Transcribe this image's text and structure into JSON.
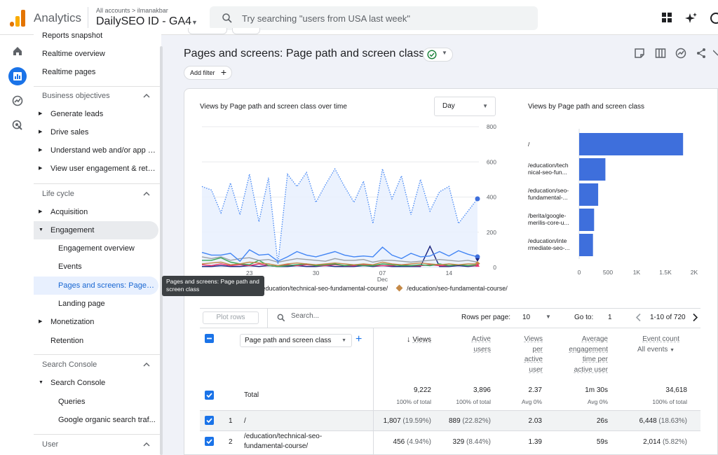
{
  "topbar": {
    "brand": "Analytics",
    "breadcrumb": "All accounts > ilmanakbar",
    "property": "DailySEO ID - GA4",
    "search_placeholder": "Try searching \"users from USA last week\"",
    "accent": "#1a73e8"
  },
  "nav": {
    "items_top": [
      "Reports snapshot",
      "Realtime overview",
      "Realtime pages"
    ],
    "sections": [
      {
        "label": "Business objectives",
        "items": [
          "Generate leads",
          "Drive sales",
          "Understand web and/or app t...",
          "View user engagement & rete..."
        ]
      },
      {
        "label": "Life cycle",
        "items": [
          "Acquisition",
          "Engagement"
        ]
      },
      {
        "label": "Search Console",
        "items": [
          "Search Console"
        ]
      },
      {
        "label": "User"
      }
    ],
    "engagement_children": [
      "Engagement overview",
      "Events",
      "Pages and screens: Page p...",
      "Landing page"
    ],
    "lifecycle_rest": [
      "Monetization",
      "Retention"
    ],
    "search_console_children": [
      "Queries",
      "Google organic search traf..."
    ]
  },
  "tooltip": "Pages and screens: Page path and screen class",
  "page": {
    "title": "Pages and screens: Page path and screen class",
    "add_filter": "Add filter"
  },
  "line_chart": {
    "title": "Views by Page path and screen class over time",
    "granularity": "Day",
    "y_ticks": [
      "800",
      "600",
      "400",
      "200",
      "0"
    ],
    "x_ticks": [
      "23",
      "30",
      "07",
      "14"
    ],
    "x_tick_sub": [
      "Nov",
      "",
      "Dec",
      ""
    ],
    "legend": [
      {
        "label": "/education/technical-seo-fundamental-course/",
        "color": "#1a73e8"
      },
      {
        "label": "/education/seo-fundamental-course/",
        "color": "#c58a48"
      }
    ]
  },
  "chart_data": [
    {
      "type": "line",
      "title": "Views by Page path and screen class over time",
      "x": [
        "Nov 18",
        "Nov 19",
        "Nov 20",
        "Nov 21",
        "Nov 22",
        "Nov 23",
        "Nov 24",
        "Nov 25",
        "Nov 26",
        "Nov 27",
        "Nov 28",
        "Nov 29",
        "Nov 30",
        "Dec 1",
        "Dec 2",
        "Dec 3",
        "Dec 4",
        "Dec 5",
        "Dec 6",
        "Dec 7",
        "Dec 8",
        "Dec 9",
        "Dec 10",
        "Dec 11",
        "Dec 12",
        "Dec 13",
        "Dec 14",
        "Dec 15",
        "Dec 16",
        "Dec 17"
      ],
      "ylim": [
        0,
        800
      ],
      "grid": true,
      "series": [
        {
          "name": "",
          "style": "dotted",
          "color": "#4285f4",
          "values": [
            460,
            440,
            310,
            480,
            300,
            530,
            260,
            510,
            20,
            530,
            460,
            540,
            370,
            470,
            560,
            460,
            370,
            490,
            250,
            560,
            390,
            520,
            300,
            500,
            320,
            430,
            460,
            250,
            320,
            390
          ]
        },
        {
          "name": "",
          "color": "#4285f4",
          "values": [
            85,
            70,
            70,
            80,
            35,
            100,
            70,
            75,
            35,
            60,
            90,
            70,
            60,
            75,
            90,
            70,
            60,
            65,
            60,
            115,
            70,
            50,
            80,
            60,
            65,
            90,
            65,
            95,
            75,
            60
          ]
        },
        {
          "name": "",
          "color": "#9aa0a6",
          "values": [
            60,
            50,
            60,
            40,
            50,
            55,
            40,
            45,
            30,
            40,
            50,
            45,
            40,
            35,
            50,
            40,
            40,
            45,
            30,
            40,
            40,
            35,
            30,
            35,
            40,
            45,
            40,
            35,
            40,
            30
          ]
        },
        {
          "name": "",
          "color": "#c58a48",
          "values": [
            20,
            25,
            30,
            15,
            20,
            30,
            25,
            20,
            10,
            20,
            25,
            20,
            15,
            20,
            25,
            20,
            15,
            20,
            15,
            30,
            20,
            15,
            20,
            25,
            20,
            15,
            20,
            15,
            20,
            20
          ]
        },
        {
          "name": "",
          "color": "#34a853",
          "values": [
            40,
            40,
            55,
            30,
            20,
            15,
            40,
            10,
            5,
            10,
            15,
            20,
            10,
            15,
            20,
            10,
            15,
            10,
            10,
            20,
            15,
            10,
            10,
            15,
            10,
            20,
            10,
            15,
            10,
            15
          ]
        },
        {
          "name": "",
          "color": "#e8336d",
          "values": [
            15,
            10,
            20,
            10,
            15,
            10,
            20,
            10,
            5,
            15,
            10,
            15,
            10,
            10,
            15,
            10,
            10,
            15,
            10,
            10,
            10,
            15,
            10,
            10,
            15,
            10,
            10,
            15,
            10,
            10
          ]
        },
        {
          "name": "",
          "color": "#1a237e",
          "values": [
            5,
            5,
            10,
            5,
            5,
            10,
            5,
            10,
            5,
            5,
            10,
            5,
            5,
            10,
            5,
            5,
            5,
            10,
            5,
            10,
            5,
            5,
            5,
            5,
            120,
            5,
            5,
            10,
            5,
            10
          ]
        }
      ]
    },
    {
      "type": "bar",
      "title": "Views by Page path and screen class",
      "orientation": "horizontal",
      "categories": [
        "/",
        "/education/technical-seo-fundamental-course/",
        "/education/seo-fundamental-course/",
        "/berita/google-merilis-core-update/",
        "/education/intermediate-seo-course/"
      ],
      "category_labels": [
        [
          "/"
        ],
        [
          "/education/tech",
          "nical-seo-fun..."
        ],
        [
          "/education/seo-",
          "fundamental-..."
        ],
        [
          "/berita/google-",
          "merilis-core-u..."
        ],
        [
          "/education/inte",
          "rmediate-seo-..."
        ]
      ],
      "values": [
        1807,
        456,
        330,
        260,
        240
      ],
      "x_ticks": [
        "0",
        "500",
        "1K",
        "1.5K",
        "2K"
      ],
      "xlim": [
        0,
        2000
      ],
      "color": "#3e6fdc"
    }
  ],
  "bar_chart": {
    "title": "Views by Page path and screen class"
  },
  "table": {
    "plot_rows": "Plot rows",
    "search_placeholder": "Search...",
    "rows_per_page_label": "Rows per page:",
    "rows_per_page": "10",
    "goto_label": "Go to:",
    "goto_value": "1",
    "pagination": "1-10 of 720",
    "dimension_label": "Page path and screen class",
    "columns": [
      {
        "lines": [
          "Views"
        ],
        "sorted": true
      },
      {
        "lines": [
          "Active",
          "users"
        ]
      },
      {
        "lines": [
          "Views",
          "per",
          "active",
          "user"
        ]
      },
      {
        "lines": [
          "Average",
          "engagement",
          "time per",
          "active user"
        ]
      },
      {
        "lines": [
          "Event count",
          "All events"
        ]
      }
    ],
    "total": {
      "label": "Total",
      "values": [
        "9,222",
        "3,896",
        "2.37",
        "1m 30s",
        "34,618"
      ],
      "subs": [
        "100% of total",
        "100% of total",
        "Avg 0%",
        "Avg 0%",
        "100% of total"
      ]
    },
    "rows": [
      {
        "index": "1",
        "path": [
          "/"
        ],
        "views": "1,807",
        "views_pct": "(19.59%)",
        "users": "889",
        "users_pct": "(22.82%)",
        "vpu": "2.03",
        "time": "26s",
        "events": "6,448",
        "events_pct": "(18.63%)"
      },
      {
        "index": "2",
        "path": [
          "/education/technical-seo-",
          "fundamental-course/"
        ],
        "views": "456",
        "views_pct": "(4.94%)",
        "users": "329",
        "users_pct": "(8.44%)",
        "vpu": "1.39",
        "time": "59s",
        "events": "2,014",
        "events_pct": "(5.82%)"
      }
    ]
  }
}
